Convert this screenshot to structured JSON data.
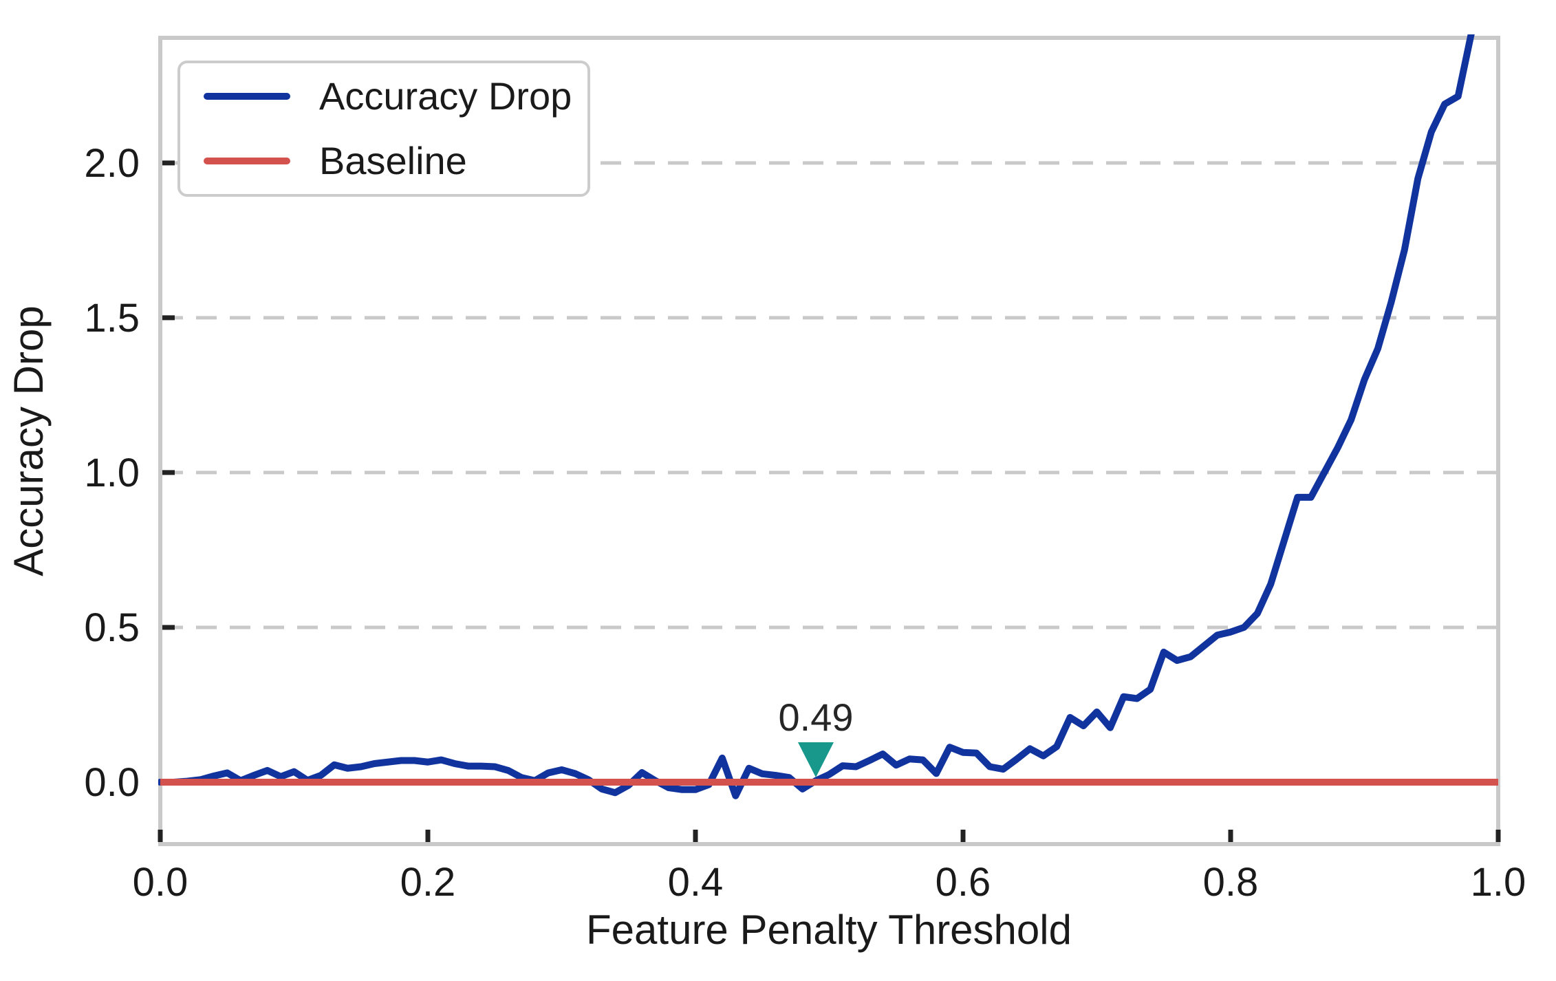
{
  "figure": {
    "background": "#ffffff"
  },
  "chart_data": {
    "type": "line",
    "title": "",
    "xlabel": "Feature Penalty Threshold",
    "ylabel": "Accuracy Drop",
    "xlim": [
      0.0,
      1.0
    ],
    "ylim": [
      -0.2,
      2.404
    ],
    "grid": {
      "axis": "y",
      "style": "dashed",
      "color": "#C9C9C9"
    },
    "axis_color": "#C9C9C9",
    "tick_color": "#222222",
    "text_color": "#1a1a1a",
    "xticks": {
      "values": [
        0.0,
        0.2,
        0.4,
        0.6,
        0.8,
        1.0
      ],
      "labels": [
        "0.0",
        "0.2",
        "0.4",
        "0.6",
        "0.8",
        "1.0"
      ]
    },
    "yticks": {
      "values": [
        0.0,
        0.5,
        1.0,
        1.5,
        2.0
      ],
      "labels": [
        "0.0",
        "0.5",
        "1.0",
        "1.5",
        "2.0"
      ]
    },
    "legend": {
      "position": "upper-left",
      "entries": [
        {
          "label": "Accuracy Drop",
          "color": "#10339E"
        },
        {
          "label": "Baseline",
          "color": "#D4524D"
        }
      ]
    },
    "annotation": {
      "text": "0.49",
      "x": 0.49,
      "y": 0.073,
      "marker": "triangle-down",
      "color": "#17988B"
    },
    "series": [
      {
        "name": "Accuracy Drop",
        "color": "#10339E",
        "x": [
          0.0,
          0.01,
          0.02,
          0.03,
          0.04,
          0.05,
          0.06,
          0.07,
          0.08,
          0.09,
          0.1,
          0.11,
          0.12,
          0.13,
          0.14,
          0.15,
          0.16,
          0.17,
          0.18,
          0.19,
          0.2,
          0.21,
          0.22,
          0.23,
          0.24,
          0.25,
          0.26,
          0.27,
          0.28,
          0.29,
          0.3,
          0.31,
          0.32,
          0.33,
          0.34,
          0.35,
          0.36,
          0.37,
          0.38,
          0.39,
          0.4,
          0.41,
          0.42,
          0.43,
          0.44,
          0.45,
          0.46,
          0.47,
          0.48,
          0.49,
          0.5,
          0.51,
          0.52,
          0.53,
          0.54,
          0.55,
          0.56,
          0.57,
          0.58,
          0.59,
          0.6,
          0.61,
          0.62,
          0.63,
          0.64,
          0.65,
          0.66,
          0.67,
          0.68,
          0.69,
          0.7,
          0.71,
          0.72,
          0.73,
          0.74,
          0.75,
          0.76,
          0.77,
          0.78,
          0.79,
          0.8,
          0.81,
          0.82,
          0.83,
          0.84,
          0.85,
          0.86,
          0.87,
          0.88,
          0.89,
          0.9,
          0.91,
          0.92,
          0.93,
          0.94,
          0.95,
          0.96,
          0.97,
          0.98
        ],
        "y": [
          0.0,
          0.0,
          0.003,
          0.008,
          0.02,
          0.03,
          0.005,
          0.022,
          0.038,
          0.018,
          0.034,
          0.006,
          0.022,
          0.056,
          0.045,
          0.05,
          0.06,
          0.065,
          0.07,
          0.07,
          0.065,
          0.072,
          0.06,
          0.052,
          0.052,
          0.05,
          0.038,
          0.015,
          0.005,
          0.03,
          0.04,
          0.028,
          0.008,
          -0.022,
          -0.034,
          -0.01,
          0.031,
          0.005,
          -0.018,
          -0.024,
          -0.024,
          -0.008,
          0.078,
          -0.044,
          0.045,
          0.027,
          0.022,
          0.015,
          -0.022,
          0.005,
          0.025,
          0.053,
          0.05,
          0.07,
          0.091,
          0.055,
          0.075,
          0.072,
          0.028,
          0.113,
          0.096,
          0.094,
          0.05,
          0.042,
          0.074,
          0.108,
          0.085,
          0.115,
          0.209,
          0.182,
          0.227,
          0.176,
          0.276,
          0.27,
          0.3,
          0.42,
          0.393,
          0.405,
          0.44,
          0.475,
          0.485,
          0.5,
          0.545,
          0.64,
          0.78,
          0.92,
          0.92,
          1.0,
          1.08,
          1.17,
          1.3,
          1.4,
          1.55,
          1.72,
          1.95,
          2.1,
          2.19,
          2.215,
          2.42
        ]
      },
      {
        "name": "Baseline",
        "color": "#D4524D",
        "x": [
          0.0,
          1.0
        ],
        "y": [
          0.0,
          0.0
        ]
      }
    ]
  }
}
